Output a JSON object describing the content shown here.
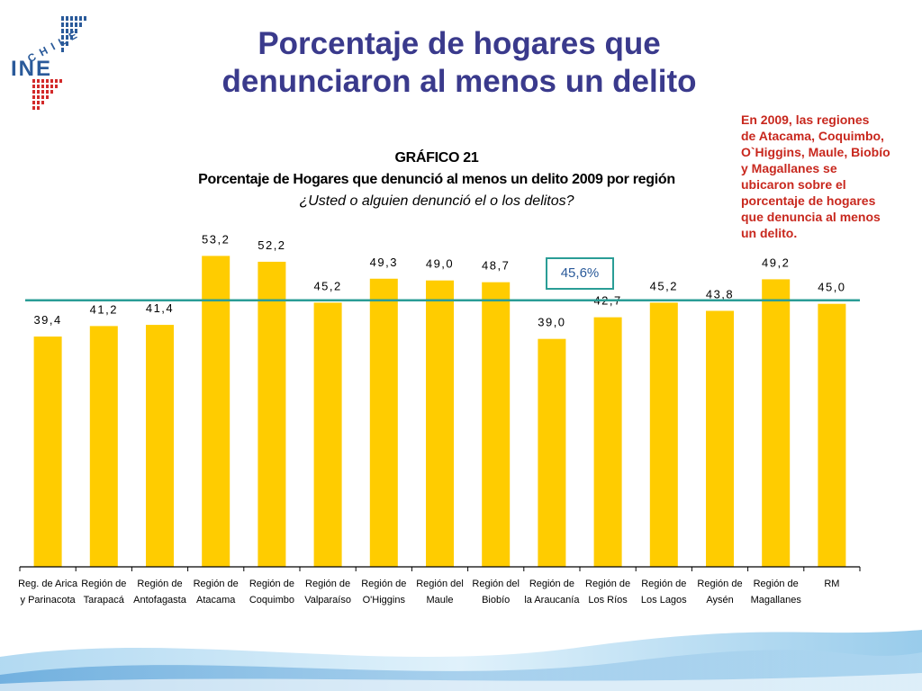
{
  "slide": {
    "title_line1": "Porcentaje de hogares que",
    "title_line2": "denunciaron al menos un delito",
    "logo_text": "INE",
    "logo_country": "CHILE",
    "note": [
      "En 2009, las regiones",
      "de Atacama, Coquimbo,",
      "O`Higgins, Maule, Biobío",
      "y Magallanes se",
      "ubicaron sobre el",
      "porcentaje de hogares",
      "que denuncia al menos",
      "un delito."
    ]
  },
  "chart_data": {
    "type": "bar",
    "label": "GRÁFICO 21",
    "title": "Porcentaje de Hogares que denunció al menos un delito 2009 por región",
    "subtitle": "¿Usted o alguien denunció el o los delitos?",
    "categories": [
      [
        "Reg. de Arica",
        "y Parinacota"
      ],
      [
        "Región de",
        "Tarapacá"
      ],
      [
        "Región de",
        "Antofagasta"
      ],
      [
        "Región de",
        "Atacama"
      ],
      [
        "Región de",
        "Coquimbo"
      ],
      [
        "Región de",
        "Valparaíso"
      ],
      [
        "Región de",
        "O'Higgins"
      ],
      [
        "Región del",
        "Maule"
      ],
      [
        "Región del",
        "Biobío"
      ],
      [
        "Región de",
        "la Araucanía"
      ],
      [
        "Región de",
        "Los Ríos"
      ],
      [
        "Región de",
        "Los Lagos"
      ],
      [
        "Región de",
        "Aysén"
      ],
      [
        "Región de",
        "Magallanes"
      ],
      [
        "RM",
        ""
      ]
    ],
    "values": [
      39.4,
      41.2,
      41.4,
      53.2,
      52.2,
      45.2,
      49.3,
      49.0,
      48.7,
      39.0,
      42.7,
      45.2,
      43.8,
      49.2,
      45.0
    ],
    "value_labels": [
      "39,4",
      "41,2",
      "41,4",
      "53,2",
      "52,2",
      "45,2",
      "49,3",
      "49,0",
      "48,7",
      "39,0",
      "42,7",
      "45,2",
      "43,8",
      "49,2",
      "45,0"
    ],
    "reference_line": {
      "value": 45.6,
      "label": "45,6%"
    },
    "ylim": [
      0,
      60
    ],
    "grid": false,
    "legend": "none",
    "colors": {
      "bar": "#ffcc00",
      "line": "#2a9d96",
      "box_border": "#2a9d96",
      "box_text": "#2a5a9a"
    }
  }
}
